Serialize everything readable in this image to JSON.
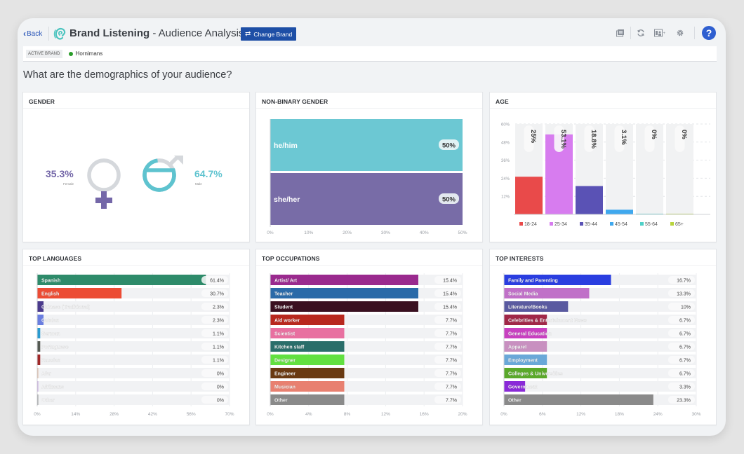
{
  "header": {
    "back_label": "Back",
    "title_bold": "Brand Listening",
    "title_rest": " - Audience Analysis",
    "change_brand_label": "Change Brand",
    "toolbar_icons": [
      "gallery-icon",
      "refresh-icon",
      "share-report-icon",
      "gear-icon"
    ],
    "help_label": "?"
  },
  "brand_bar": {
    "tag": "ACTIVE BRAND",
    "brand_name": "Hornimans",
    "status_color": "#2a9d2a"
  },
  "question": "What are the demographics of your audience?",
  "gender": {
    "title": "GENDER",
    "female_pct": "35.3%",
    "female_label": "Female",
    "male_pct": "64.7%",
    "male_label": "Male",
    "female_color": "#7467a8",
    "male_color": "#5ec3cf"
  },
  "chart_data": [
    {
      "id": "nonbinary",
      "type": "bar",
      "orientation": "horizontal",
      "title": "NON-BINARY GENDER",
      "categories": [
        "he/him",
        "she/her"
      ],
      "values": [
        50,
        50
      ],
      "value_labels": [
        "50%",
        "50%"
      ],
      "colors": [
        "#6cc8d3",
        "#786ca7"
      ],
      "xlim": [
        0,
        50
      ],
      "xticks": [
        "0%",
        "10%",
        "20%",
        "30%",
        "40%",
        "50%"
      ]
    },
    {
      "id": "age",
      "type": "bar",
      "orientation": "vertical",
      "title": "AGE",
      "categories": [
        "18-24",
        "25-34",
        "35-44",
        "45-54",
        "55-64",
        "65+"
      ],
      "values": [
        25,
        53.1,
        18.8,
        3.1,
        0,
        0
      ],
      "value_labels": [
        "25%",
        "53.1%",
        "18.8%",
        "3.1%",
        "0%",
        "0%"
      ],
      "colors": [
        "#e94a4a",
        "#d77cef",
        "#5a52b5",
        "#3fa8ee",
        "#4fd0c8",
        "#b8d43c"
      ],
      "ylim": [
        0,
        60
      ],
      "yticks": [
        "12%",
        "24%",
        "36%",
        "48%",
        "60%"
      ],
      "legend": "bottom"
    },
    {
      "id": "languages",
      "type": "bar",
      "orientation": "horizontal",
      "title": "TOP LANGUAGES",
      "categories": [
        "Spanish",
        "English",
        "Chinese (Traditional)",
        "Catalan",
        "German",
        "Portuguese",
        "Russian",
        "Afar",
        "Afrikaans",
        "Other"
      ],
      "values": [
        61.4,
        30.7,
        2.3,
        2.3,
        1.1,
        1.1,
        1.1,
        0,
        0,
        0
      ],
      "value_labels": [
        "61.4%",
        "30.7%",
        "2.3%",
        "2.3%",
        "1.1%",
        "1.1%",
        "1.1%",
        "0%",
        "0%",
        "0%"
      ],
      "colors": [
        "#2e8b6a",
        "#ec4c34",
        "#4a3a8c",
        "#6a7ee0",
        "#2a9bd0",
        "#555a52",
        "#a02828",
        "#e0b8a0",
        "#c8a8e0",
        "#999999"
      ],
      "xlim": [
        0,
        70
      ],
      "xticks": [
        "0%",
        "14%",
        "28%",
        "42%",
        "56%",
        "70%"
      ]
    },
    {
      "id": "occupations",
      "type": "bar",
      "orientation": "horizontal",
      "title": "TOP OCCUPATIONS",
      "categories": [
        "Artist/ Art",
        "Teacher",
        "Student",
        "Aid worker",
        "Scientist",
        "Kitchen staff",
        "Designer",
        "Engineer",
        "Musician",
        "Other"
      ],
      "values": [
        15.4,
        15.4,
        15.4,
        7.7,
        7.7,
        7.7,
        7.7,
        7.7,
        7.7,
        7.7
      ],
      "value_labels": [
        "15.4%",
        "15.4%",
        "15.4%",
        "7.7%",
        "7.7%",
        "7.7%",
        "7.7%",
        "7.7%",
        "7.7%",
        "7.7%"
      ],
      "colors": [
        "#9a2a8e",
        "#2a6aa8",
        "#3a1020",
        "#b8281e",
        "#e870a0",
        "#2a6e6a",
        "#62e040",
        "#6a3a12",
        "#e88070",
        "#8a8a8a"
      ],
      "xlim": [
        0,
        20
      ],
      "xticks": [
        "0%",
        "4%",
        "8%",
        "12%",
        "16%",
        "20%"
      ]
    },
    {
      "id": "interests",
      "type": "bar",
      "orientation": "horizontal",
      "title": "TOP INTERESTS",
      "categories": [
        "Family and Parenting",
        "Social Media",
        "Literature/Books",
        "Celebrities & Entertainment News",
        "General Education",
        "Apparel",
        "Employment",
        "Colleges & Universities",
        "Government",
        "Other"
      ],
      "values": [
        16.7,
        13.3,
        10,
        6.7,
        6.7,
        6.7,
        6.7,
        6.7,
        3.3,
        23.3
      ],
      "value_labels": [
        "16.7%",
        "13.3%",
        "10%",
        "6.7%",
        "6.7%",
        "6.7%",
        "6.7%",
        "6.7%",
        "3.3%",
        "23.3%"
      ],
      "colors": [
        "#2a3ee0",
        "#c070c8",
        "#5a5aa0",
        "#a02848",
        "#c840c0",
        "#c890c0",
        "#6aa8d8",
        "#5aa82a",
        "#8a2ad8",
        "#8a8a8a"
      ],
      "xlim": [
        0,
        30
      ],
      "xticks": [
        "0%",
        "6%",
        "12%",
        "18%",
        "24%",
        "30%"
      ]
    }
  ]
}
